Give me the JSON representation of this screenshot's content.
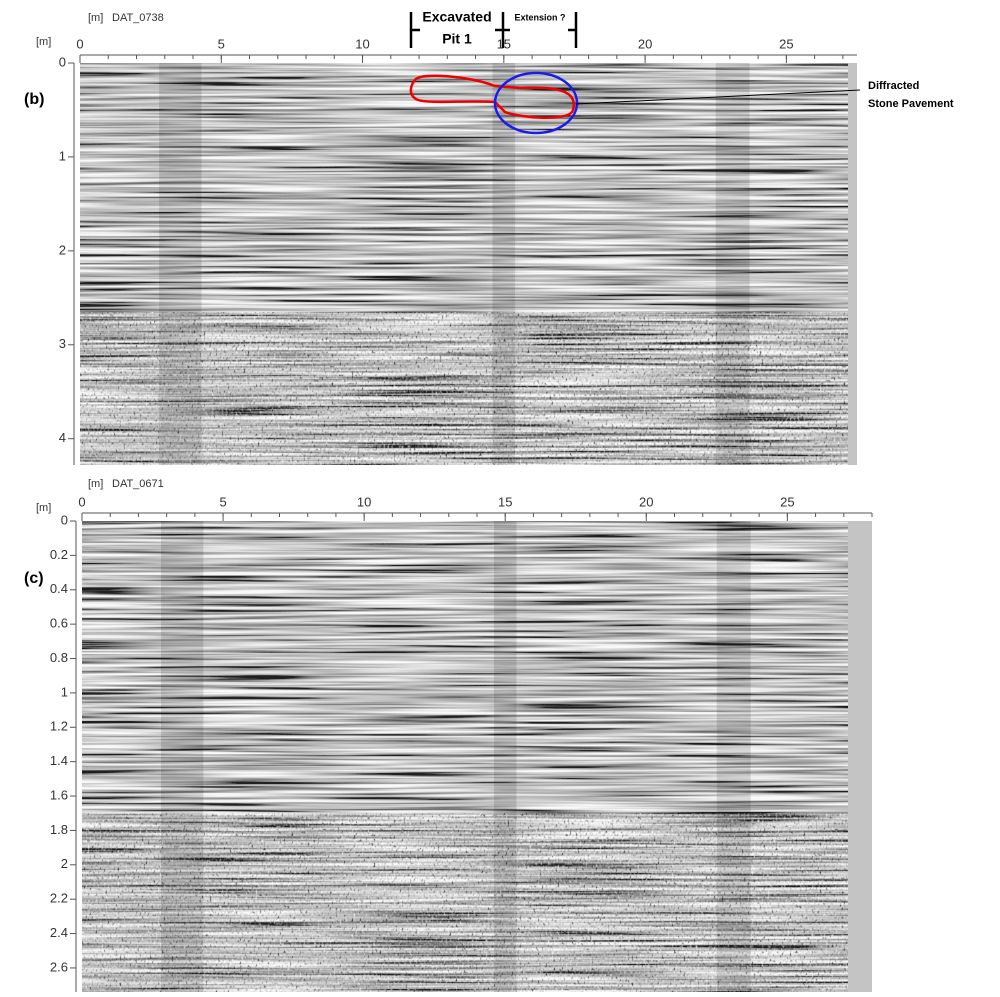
{
  "panels": [
    {
      "label": "(b)",
      "file": "DAT_0738",
      "x_unit": "[m]",
      "y_unit": "[m]",
      "xlim": [
        0,
        27.5
      ],
      "ylim": [
        0,
        4.28
      ],
      "xticks": [
        0,
        5,
        10,
        15,
        20,
        25
      ],
      "yticks": [
        0,
        1,
        2,
        3,
        4
      ]
    },
    {
      "label": "(c)",
      "file": "DAT_0671",
      "x_unit": "[m]",
      "y_unit": "[m]",
      "xlim": [
        0,
        28
      ],
      "ylim": [
        0,
        2.74
      ],
      "xticks": [
        0,
        5,
        10,
        15,
        20,
        25
      ],
      "yticks": [
        0,
        0.2,
        0.4,
        0.6,
        0.8,
        1,
        1.2,
        1.4,
        1.6,
        1.8,
        2,
        2.2,
        2.4,
        2.6
      ]
    }
  ],
  "annotations": {
    "excavated": [
      "Excavated",
      "Pit 1"
    ],
    "extension": "Extension ?",
    "diffracted": [
      "Diffracted",
      "Stone Pavement"
    ]
  }
}
